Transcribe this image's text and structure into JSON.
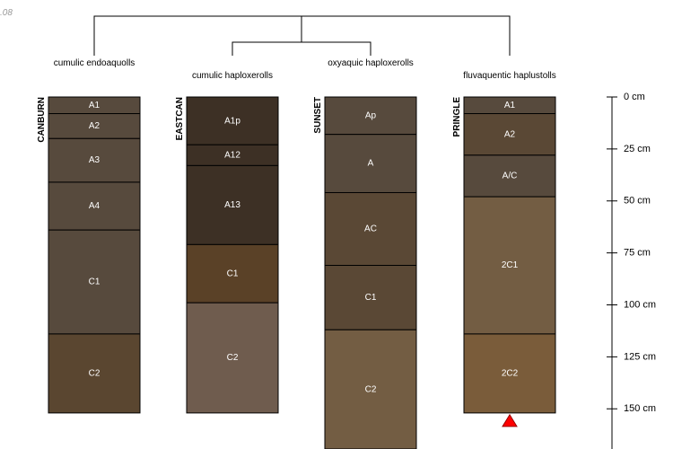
{
  "corner_label": ".08",
  "depth_unit": "cm",
  "depth_ticks": [
    0,
    25,
    50,
    75,
    100,
    125,
    150
  ],
  "taxa": [
    "cumulic endoaquolls",
    "cumulic haploxerolls",
    "oxyaquic haploxerolls",
    "fluvaquentic haplustolls"
  ],
  "profiles": [
    {
      "name": "CANBURN",
      "horizons": [
        {
          "name": "A1",
          "top": 0,
          "bottom": 8,
          "color": "#574a3d"
        },
        {
          "name": "A2",
          "top": 8,
          "bottom": 20,
          "color": "#574a3d"
        },
        {
          "name": "A3",
          "top": 20,
          "bottom": 41,
          "color": "#574a3d"
        },
        {
          "name": "A4",
          "top": 41,
          "bottom": 64,
          "color": "#574a3d"
        },
        {
          "name": "C1",
          "top": 64,
          "bottom": 114,
          "color": "#574a3d"
        },
        {
          "name": "C2",
          "top": 114,
          "bottom": 152,
          "color": "#5a4630"
        }
      ]
    },
    {
      "name": "EASTCAN",
      "horizons": [
        {
          "name": "A1p",
          "top": 0,
          "bottom": 23,
          "color": "#3d3025"
        },
        {
          "name": "A12",
          "top": 23,
          "bottom": 33,
          "color": "#3d3025"
        },
        {
          "name": "A13",
          "top": 33,
          "bottom": 71,
          "color": "#3d3025"
        },
        {
          "name": "C1",
          "top": 71,
          "bottom": 99,
          "color": "#5a4127"
        },
        {
          "name": "C2",
          "top": 99,
          "bottom": 152,
          "color": "#6f5c4e"
        }
      ]
    },
    {
      "name": "SUNSET",
      "horizons": [
        {
          "name": "Ap",
          "top": 0,
          "bottom": 18,
          "color": "#574a3d"
        },
        {
          "name": "A",
          "top": 18,
          "bottom": 46,
          "color": "#574a3d"
        },
        {
          "name": "AC",
          "top": 46,
          "bottom": 81,
          "color": "#5a4835"
        },
        {
          "name": "C1",
          "top": 81,
          "bottom": 112,
          "color": "#5a4835"
        },
        {
          "name": "C2",
          "top": 112,
          "bottom": 170,
          "color": "#735d43"
        }
      ]
    },
    {
      "name": "PRINGLE",
      "horizons": [
        {
          "name": "A1",
          "top": 0,
          "bottom": 8,
          "color": "#574a3d"
        },
        {
          "name": "A2",
          "top": 8,
          "bottom": 28,
          "color": "#5a4835"
        },
        {
          "name": "A/C",
          "top": 28,
          "bottom": 48,
          "color": "#574a3d"
        },
        {
          "name": "2C1",
          "top": 48,
          "bottom": 114,
          "color": "#735d43"
        },
        {
          "name": "2C2",
          "top": 114,
          "bottom": 152,
          "color": "#7a5c3a"
        }
      ]
    }
  ],
  "marker": {
    "profile": "PRINGLE",
    "depth": 152,
    "color": "#ff0000"
  }
}
